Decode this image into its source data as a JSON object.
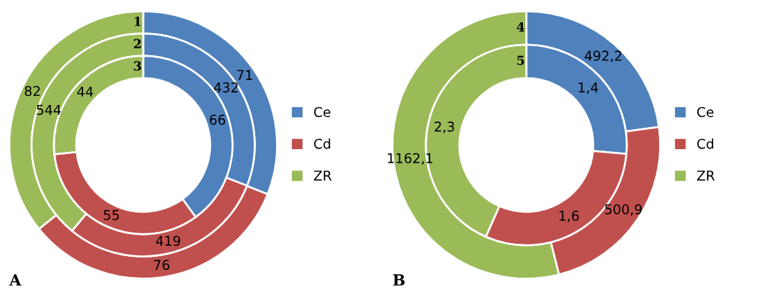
{
  "chart_data": [
    {
      "type": "donut",
      "title": "A",
      "categories": [
        "Ce",
        "Cd",
        "ZR"
      ],
      "colors": [
        "#4f81bd",
        "#c0504d",
        "#9bbb59"
      ],
      "legend": "right",
      "series": [
        {
          "name": "1",
          "values": [
            71,
            76,
            82
          ],
          "value_labels": [
            "71",
            "76",
            "82"
          ]
        },
        {
          "name": "2",
          "values": [
            432,
            419,
            544
          ],
          "value_labels": [
            "432",
            "419",
            "544"
          ]
        },
        {
          "name": "3",
          "values": [
            66,
            55,
            44
          ],
          "value_labels": [
            "66",
            "55",
            "44"
          ]
        }
      ]
    },
    {
      "type": "donut",
      "title": "B",
      "categories": [
        "Ce",
        "Cd",
        "ZR"
      ],
      "colors": [
        "#4f81bd",
        "#c0504d",
        "#9bbb59"
      ],
      "legend": "right",
      "series": [
        {
          "name": "4",
          "values": [
            492.2,
            500.9,
            1162.1
          ],
          "value_labels": [
            "492,2",
            "500,9",
            "1162,1"
          ]
        },
        {
          "name": "5",
          "values": [
            1.4,
            1.6,
            2.3
          ],
          "value_labels": [
            "1,4",
            "1,6",
            "2,3"
          ]
        }
      ]
    }
  ]
}
